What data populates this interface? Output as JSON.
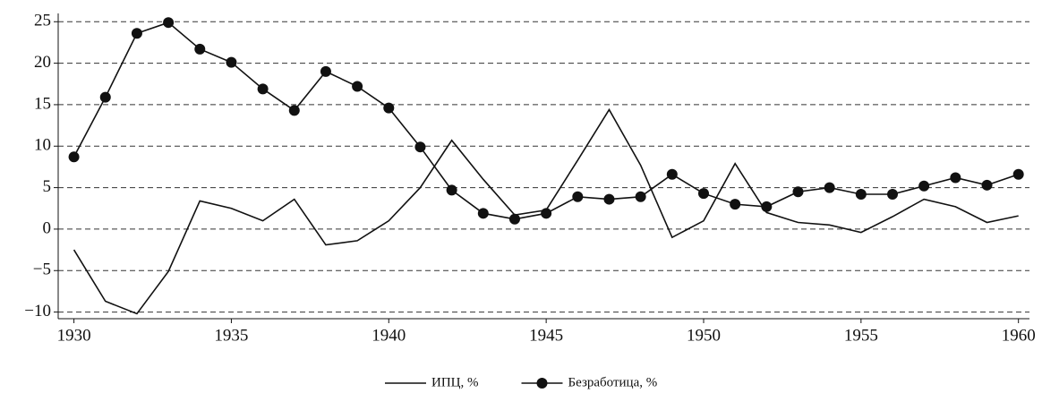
{
  "chart_data": {
    "type": "line",
    "x": [
      1930,
      1931,
      1932,
      1933,
      1934,
      1935,
      1936,
      1937,
      1938,
      1939,
      1940,
      1941,
      1942,
      1943,
      1944,
      1945,
      1946,
      1947,
      1948,
      1949,
      1950,
      1951,
      1952,
      1953,
      1954,
      1955,
      1956,
      1957,
      1958,
      1959,
      1960
    ],
    "series": [
      {
        "name": "ИПЦ, %",
        "color": "#111111",
        "marker": "none",
        "values": [
          -2.5,
          -8.7,
          -10.2,
          -5.1,
          3.4,
          2.5,
          1.0,
          3.6,
          -1.9,
          -1.4,
          1.0,
          5.0,
          10.7,
          6.0,
          1.7,
          2.3,
          8.3,
          14.4,
          7.7,
          -1.0,
          1.0,
          7.9,
          2.0,
          0.8,
          0.5,
          -0.4,
          1.5,
          3.6,
          2.7,
          0.8,
          1.6
        ]
      },
      {
        "name": "Безработица, %",
        "color": "#111111",
        "marker": "circle",
        "values": [
          8.7,
          15.9,
          23.6,
          24.9,
          21.7,
          20.1,
          16.9,
          14.3,
          19.0,
          17.2,
          14.6,
          9.9,
          4.7,
          1.9,
          1.2,
          1.9,
          3.9,
          3.6,
          3.9,
          6.6,
          4.3,
          3.0,
          2.7,
          4.5,
          5.0,
          4.2,
          4.2,
          5.2,
          6.2,
          5.3,
          6.6
        ]
      }
    ],
    "xlim": [
      1929.5,
      1960.35
    ],
    "xticks": [
      1930,
      1935,
      1940,
      1945,
      1950,
      1955,
      1960
    ],
    "ylim": [
      -10.8,
      26
    ],
    "yticks": [
      {
        "value": -10,
        "label": "−10"
      },
      {
        "value": -5,
        "label": "−5"
      },
      0,
      5,
      10,
      15,
      20,
      25
    ],
    "grid": true,
    "legend": "bottom"
  }
}
